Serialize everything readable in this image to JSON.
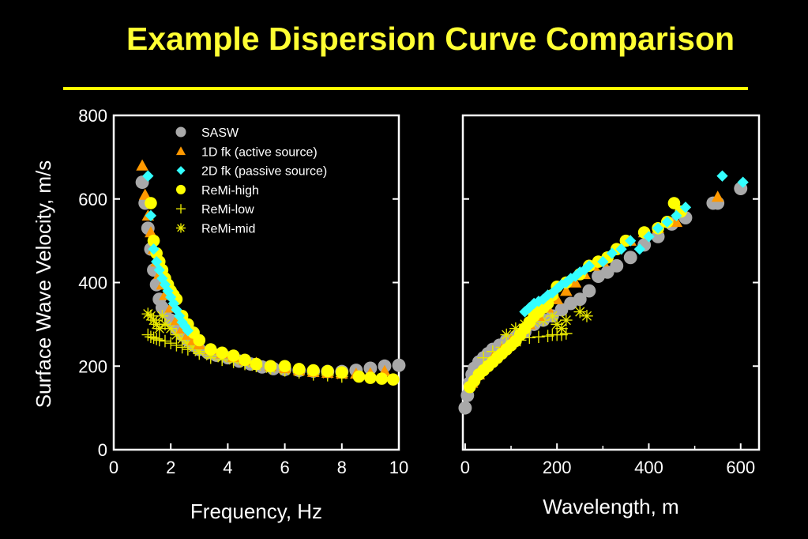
{
  "slide": {
    "title": "Example Dispersion Curve Comparison"
  },
  "colors": {
    "background": "#000000",
    "title": "#ffff33",
    "rule": "#ffff00",
    "axis": "#ffffff",
    "sasw": "#a9a9a9",
    "fk1d": "#ff9900",
    "fk2d": "#33ffff",
    "remi_high": "#ffff00",
    "remi_low": "#e6e600",
    "remi_mid": "#e6e600"
  },
  "chart_data": [
    {
      "type": "scatter",
      "xlabel": "Frequency, Hz",
      "ylabel": "Surface Wave Velocity, m/s",
      "xlim": [
        0,
        10
      ],
      "ylim": [
        0,
        800
      ],
      "xticks": [
        0,
        2,
        4,
        6,
        8,
        10
      ],
      "yticks": [
        0,
        200,
        400,
        600,
        800
      ],
      "legend": "top-center",
      "series": [
        {
          "name": "SASW",
          "marker": "circle",
          "x": [
            1.0,
            1.1,
            1.2,
            1.3,
            1.4,
            1.5,
            1.6,
            1.7,
            1.8,
            2.0,
            2.2,
            2.4,
            2.6,
            2.8,
            3.0,
            3.3,
            3.6,
            4.0,
            4.4,
            4.8,
            5.2,
            5.6,
            6.0,
            6.5,
            7.0,
            7.5,
            8.0,
            8.5,
            9.0,
            9.5,
            10.0
          ],
          "y": [
            640,
            590,
            530,
            480,
            430,
            395,
            360,
            340,
            330,
            310,
            290,
            275,
            262,
            250,
            240,
            232,
            226,
            220,
            212,
            205,
            198,
            194,
            192,
            190,
            188,
            187,
            187,
            190,
            195,
            200,
            202
          ]
        },
        {
          "name": "1D fk (active source)",
          "marker": "triangle",
          "x": [
            1.0,
            1.1,
            1.2,
            1.3,
            1.4,
            1.5,
            1.6,
            1.7,
            1.8,
            2.0,
            2.2,
            2.4,
            2.6,
            2.8,
            3.0,
            3.4,
            3.8,
            4.2,
            4.6,
            5.0,
            5.5,
            6.0,
            6.5,
            7.0,
            7.5,
            8.0,
            8.5,
            9.0,
            9.5
          ],
          "y": [
            680,
            610,
            560,
            520,
            480,
            450,
            420,
            395,
            370,
            340,
            310,
            290,
            275,
            262,
            252,
            240,
            230,
            222,
            214,
            208,
            200,
            195,
            190,
            186,
            184,
            182,
            182,
            183,
            188
          ]
        },
        {
          "name": "2D fk (passive source)",
          "marker": "diamond",
          "x": [
            1.2,
            1.3,
            1.4,
            1.5,
            1.6,
            1.7,
            1.8,
            1.9,
            2.0,
            2.1,
            2.2,
            2.3,
            2.4,
            2.5,
            2.6
          ],
          "y": [
            655,
            560,
            480,
            450,
            430,
            410,
            395,
            380,
            365,
            350,
            335,
            320,
            305,
            295,
            285
          ]
        },
        {
          "name": "ReMi-high",
          "marker": "dot",
          "x": [
            1.3,
            1.4,
            1.5,
            1.6,
            1.7,
            1.8,
            1.9,
            2.0,
            2.1,
            2.2,
            2.4,
            2.6,
            2.8,
            3.0,
            3.4,
            3.8,
            4.2,
            4.6,
            5.0,
            5.5,
            6.0,
            6.5,
            7.0,
            7.5,
            8.0,
            8.6,
            9.0,
            9.4,
            9.8
          ],
          "y": [
            590,
            500,
            470,
            450,
            430,
            410,
            395,
            380,
            370,
            360,
            320,
            300,
            280,
            262,
            240,
            232,
            225,
            215,
            205,
            200,
            200,
            193,
            190,
            188,
            185,
            175,
            172,
            170,
            168
          ]
        },
        {
          "name": "ReMi-low",
          "marker": "plus",
          "x": [
            1.2,
            1.3,
            1.4,
            1.5,
            1.6,
            1.8,
            2.0,
            2.2,
            2.4,
            2.6,
            3.0,
            3.4,
            3.8,
            4.2,
            4.6,
            5.0,
            5.5,
            6.0,
            6.5,
            7.0,
            7.5,
            8.0
          ],
          "y": [
            275,
            270,
            268,
            265,
            262,
            260,
            255,
            250,
            245,
            240,
            230,
            220,
            215,
            210,
            205,
            200,
            195,
            190,
            185,
            180,
            178,
            175
          ]
        },
        {
          "name": "ReMi-mid",
          "marker": "asterisk",
          "x": [
            1.2,
            1.3,
            1.4,
            1.5,
            1.6,
            1.7,
            1.8,
            2.0,
            2.2,
            2.4,
            2.6,
            2.8,
            3.0,
            3.4,
            3.8,
            4.2,
            4.6,
            5.0,
            5.5,
            6.0,
            6.5,
            7.0,
            7.5,
            8.0
          ],
          "y": [
            325,
            320,
            310,
            300,
            290,
            320,
            300,
            290,
            275,
            265,
            255,
            245,
            235,
            225,
            220,
            215,
            208,
            200,
            195,
            190,
            187,
            185,
            182,
            180
          ]
        }
      ]
    },
    {
      "type": "scatter",
      "xlabel": "Wavelength, m",
      "ylabel": "",
      "xlim": [
        -5,
        640
      ],
      "ylim": [
        0,
        800
      ],
      "xticks": [
        0,
        200,
        400,
        600
      ],
      "yticks": [
        0,
        200,
        400,
        600,
        800
      ],
      "series": [
        {
          "name": "SASW",
          "marker": "circle",
          "x": [
            0,
            5,
            10,
            15,
            20,
            30,
            40,
            50,
            60,
            75,
            90,
            110,
            130,
            150,
            170,
            190,
            210,
            230,
            250,
            270,
            290,
            310,
            330,
            360,
            390,
            420,
            450,
            480,
            540,
            550,
            600
          ],
          "y": [
            100,
            130,
            160,
            180,
            195,
            210,
            220,
            230,
            240,
            250,
            262,
            270,
            282,
            300,
            310,
            320,
            335,
            350,
            360,
            380,
            415,
            425,
            440,
            460,
            490,
            510,
            540,
            555,
            590,
            590,
            625
          ]
        },
        {
          "name": "1D fk (active source)",
          "marker": "triangle",
          "x": [
            15,
            30,
            45,
            60,
            80,
            100,
            120,
            140,
            160,
            180,
            200,
            220,
            240,
            260,
            280,
            300,
            330,
            360,
            390,
            420,
            460,
            550
          ],
          "y": [
            160,
            180,
            200,
            220,
            240,
            260,
            280,
            300,
            320,
            340,
            360,
            380,
            400,
            420,
            440,
            450,
            480,
            500,
            520,
            530,
            545,
            605
          ]
        },
        {
          "name": "2D fk (passive source)",
          "marker": "diamond",
          "x": [
            130,
            140,
            150,
            160,
            170,
            180,
            190,
            200,
            210,
            220,
            230,
            240,
            250,
            260,
            270,
            300,
            320,
            340,
            360,
            380,
            400,
            420,
            440,
            460,
            480,
            560,
            605
          ],
          "y": [
            330,
            340,
            350,
            355,
            360,
            370,
            375,
            385,
            395,
            400,
            410,
            415,
            425,
            430,
            440,
            450,
            470,
            480,
            500,
            480,
            510,
            530,
            545,
            560,
            580,
            655,
            640
          ]
        },
        {
          "name": "ReMi-high",
          "marker": "dot",
          "x": [
            10,
            20,
            30,
            40,
            50,
            60,
            70,
            80,
            90,
            100,
            110,
            120,
            130,
            140,
            150,
            160,
            170,
            180,
            190,
            200,
            220,
            250,
            270,
            290,
            310,
            330,
            350,
            390,
            420,
            440,
            455,
            470
          ],
          "y": [
            150,
            165,
            180,
            190,
            200,
            210,
            220,
            230,
            240,
            250,
            260,
            275,
            290,
            305,
            320,
            330,
            340,
            350,
            370,
            390,
            400,
            420,
            440,
            450,
            460,
            480,
            500,
            520,
            530,
            545,
            590,
            570
          ]
        },
        {
          "name": "ReMi-low",
          "marker": "plus",
          "x": [
            40,
            60,
            80,
            100,
            120,
            140,
            160,
            180,
            190,
            200,
            210,
            220
          ],
          "y": [
            220,
            235,
            245,
            255,
            262,
            268,
            270,
            272,
            275,
            275,
            275,
            278
          ]
        },
        {
          "name": "ReMi-mid",
          "marker": "asterisk",
          "x": [
            90,
            110,
            130,
            150,
            170,
            190,
            200,
            210,
            220,
            250,
            265
          ],
          "y": [
            275,
            290,
            300,
            305,
            310,
            320,
            300,
            290,
            310,
            330,
            320
          ]
        }
      ]
    }
  ]
}
